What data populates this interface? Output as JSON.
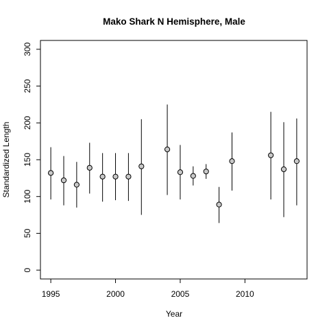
{
  "chart_data": {
    "type": "scatter",
    "title": "Mako Shark N Hemisphere,  Male",
    "xlabel": "Year",
    "ylabel": "Standardized Length",
    "xlim": [
      1994.2,
      2014.8
    ],
    "ylim": [
      -12,
      312
    ],
    "x_ticks": [
      1995,
      2000,
      2005,
      2010
    ],
    "y_ticks": [
      0,
      50,
      100,
      150,
      200,
      250,
      300
    ],
    "grid": false,
    "legend": "none",
    "marker_fill": "#c8c8c8",
    "points": [
      {
        "x": 1995,
        "y": 132,
        "lo": 96,
        "hi": 167
      },
      {
        "x": 1996,
        "y": 122,
        "lo": 88,
        "hi": 155
      },
      {
        "x": 1997,
        "y": 116,
        "lo": 85,
        "hi": 147
      },
      {
        "x": 1998,
        "y": 139,
        "lo": 104,
        "hi": 173
      },
      {
        "x": 1999,
        "y": 127,
        "lo": 93,
        "hi": 159
      },
      {
        "x": 2000,
        "y": 127,
        "lo": 95,
        "hi": 159
      },
      {
        "x": 2001,
        "y": 127,
        "lo": 94,
        "hi": 159
      },
      {
        "x": 2002,
        "y": 141,
        "lo": 75,
        "hi": 205
      },
      {
        "x": 2004,
        "y": 164,
        "lo": 102,
        "hi": 225
      },
      {
        "x": 2005,
        "y": 133,
        "lo": 96,
        "hi": 170
      },
      {
        "x": 2006,
        "y": 128,
        "lo": 115,
        "hi": 141
      },
      {
        "x": 2007,
        "y": 134,
        "lo": 124,
        "hi": 144
      },
      {
        "x": 2008,
        "y": 89,
        "lo": 64,
        "hi": 113
      },
      {
        "x": 2009,
        "y": 148,
        "lo": 108,
        "hi": 187
      },
      {
        "x": 2012,
        "y": 156,
        "lo": 96,
        "hi": 215
      },
      {
        "x": 2013,
        "y": 137,
        "lo": 72,
        "hi": 201
      },
      {
        "x": 2014,
        "y": 148,
        "lo": 88,
        "hi": 206
      }
    ]
  }
}
